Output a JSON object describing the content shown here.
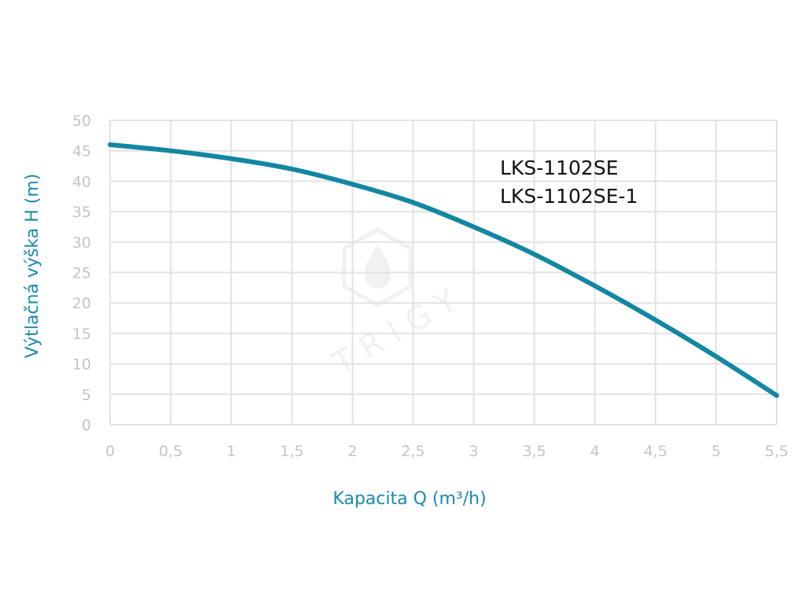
{
  "chart_data": {
    "type": "line",
    "title": "",
    "xlabel": "Kapacita Q (m³/h)",
    "ylabel": "Výtlačná výška H (m)",
    "xlim": [
      0,
      5.5
    ],
    "ylim": [
      0,
      50
    ],
    "x_ticks": [
      0,
      0.5,
      1,
      1.5,
      2,
      2.5,
      3,
      3.5,
      4,
      4.5,
      5,
      5.5
    ],
    "x_tick_labels": [
      "0",
      "0,5",
      "1",
      "1,5",
      "2",
      "2,5",
      "3",
      "3,5",
      "4",
      "4,5",
      "5",
      "5,5"
    ],
    "y_ticks": [
      0,
      5,
      10,
      15,
      20,
      25,
      30,
      35,
      40,
      45,
      50
    ],
    "y_tick_labels": [
      "0",
      "5",
      "10",
      "15",
      "20",
      "25",
      "30",
      "35",
      "40",
      "45",
      "50"
    ],
    "grid": true,
    "series": [
      {
        "x": [
          0,
          0.5,
          1,
          1.5,
          2,
          2.5,
          3,
          3.5,
          4,
          4.5,
          5,
          5.5
        ],
        "y": [
          46,
          45,
          43.7,
          42,
          39.5,
          36.5,
          32.5,
          28,
          22.8,
          17.2,
          11.2,
          4.8
        ]
      }
    ],
    "annotations": [
      "LKS-1102SE",
      "LKS-1102SE-1"
    ],
    "watermark": "TRIGY",
    "colors": {
      "line": "#1287a3",
      "axis_title": "#1a8aa8",
      "tick_label": "#c4c4c4",
      "grid": "#e2e2e2",
      "annotation": "#111111"
    }
  }
}
